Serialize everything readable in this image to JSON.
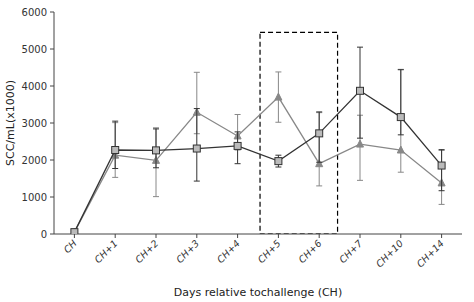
{
  "chart_data": {
    "type": "line",
    "xlabel": "Days relative tochallenge (CH)",
    "ylabel": "SCC/mL(x1000)",
    "categories": [
      "CH",
      "CH+1",
      "CH+2",
      "CH+3",
      "CH+4",
      "CH+5",
      "CH+6",
      "CH+7",
      "CH+10",
      "CH+14"
    ],
    "series": [
      {
        "color": "#333333",
        "marker": "square",
        "values": [
          50,
          2270,
          2260,
          2310,
          2380,
          1970,
          2720,
          3870,
          3160,
          1850
        ],
        "yerr_low": [
          50,
          500,
          470,
          880,
          480,
          160,
          780,
          1280,
          480,
          680
        ],
        "yerr_high": [
          50,
          780,
          580,
          1080,
          380,
          160,
          580,
          1180,
          1280,
          430
        ]
      },
      {
        "color": "#888888",
        "marker": "triangle",
        "values": [
          50,
          2130,
          1990,
          3290,
          2650,
          3700,
          1900,
          2430,
          2270,
          1380
        ],
        "yerr_low": [
          50,
          600,
          980,
          580,
          380,
          680,
          600,
          980,
          600,
          580
        ],
        "yerr_high": [
          50,
          880,
          880,
          1080,
          580,
          680,
          1380,
          780,
          2180,
          880
        ]
      }
    ],
    "highlight": {
      "from": "CH+5",
      "to": "CH+6",
      "y_bottom": 0,
      "y_top": 5450,
      "line_style": "dashed"
    },
    "ylim": [
      0,
      6000
    ],
    "yticks": [
      0,
      1000,
      2000,
      3000,
      4000,
      5000,
      6000
    ],
    "grid": false
  }
}
